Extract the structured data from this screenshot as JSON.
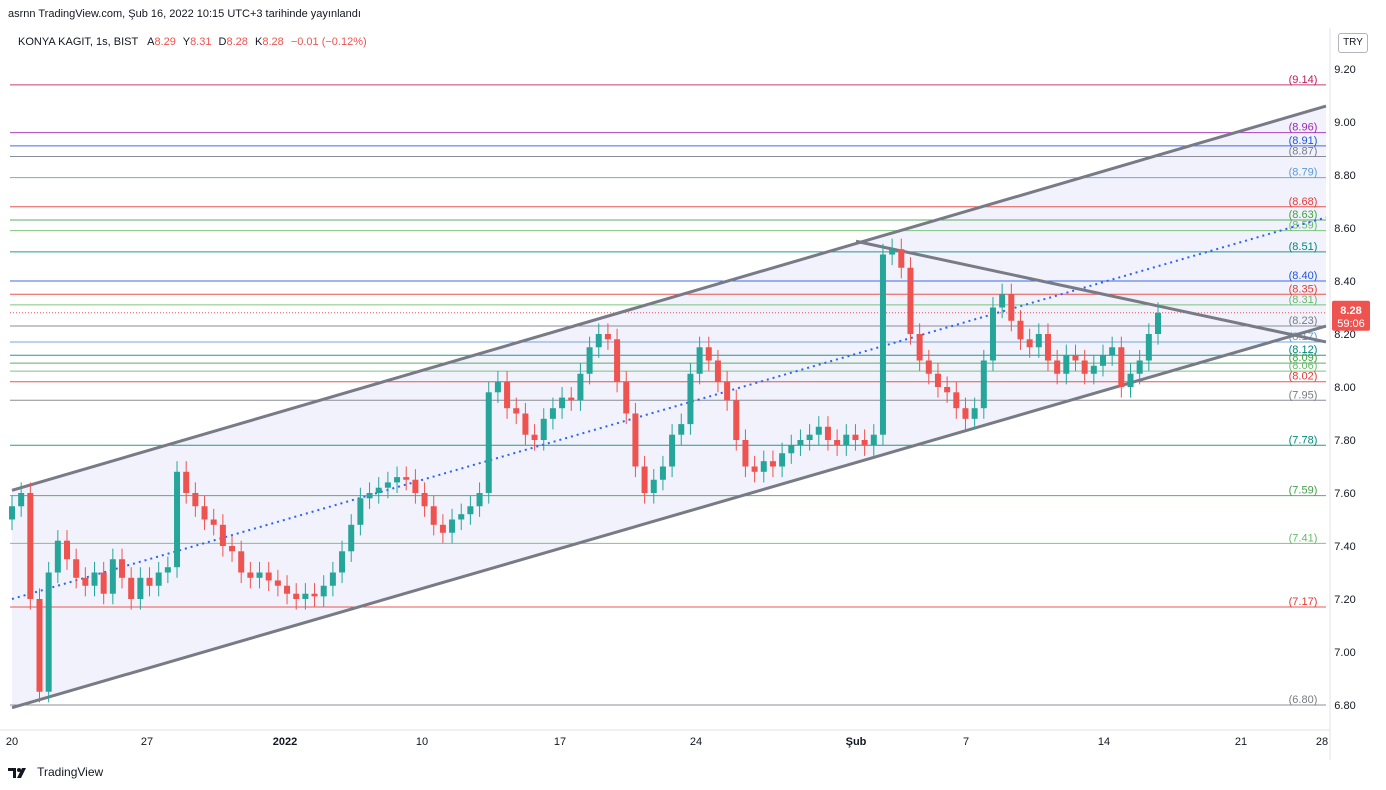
{
  "header": {
    "published": "asrnn TradingView.com, Şub 16, 2022 10:15 UTC+3 tarihinde yayınlandı"
  },
  "legend": {
    "symbol": "KONYA KAGIT, 1s, BIST",
    "open_label": "A",
    "open": "8.29",
    "high_label": "Y",
    "high": "8.31",
    "low_label": "D",
    "low": "8.28",
    "close_label": "K",
    "close": "8.28",
    "change": "−0.01 (−0.12%)"
  },
  "currency_button": "TRY",
  "footer": {
    "brand": "TradingView"
  },
  "price_tag": {
    "price": "8.28",
    "countdown": "59:06"
  },
  "colors": {
    "up": "#26a69a",
    "down": "#ef5350",
    "channel_line": "#787b86",
    "channel_fill": "#e8eaf8",
    "midline": "#2962ff"
  },
  "chart_data": {
    "type": "candlestick",
    "ylim": [
      6.75,
      9.3
    ],
    "y_ticks": [
      "9.20",
      "9.00",
      "8.80",
      "8.60",
      "8.40",
      "8.20",
      "8.00",
      "7.80",
      "7.60",
      "7.40",
      "7.20",
      "7.00",
      "6.80"
    ],
    "x_ticks": [
      "20",
      "27",
      "2022",
      "10",
      "17",
      "24",
      "Şub",
      "7",
      "14",
      "21",
      "28"
    ],
    "levels": [
      {
        "label": "(9.14)",
        "value": 9.14,
        "color": "#c2185b"
      },
      {
        "label": "(8.96)",
        "value": 8.96,
        "color": "#9c27b0"
      },
      {
        "label": "(8.91)",
        "value": 8.91,
        "color": "#1e53e5"
      },
      {
        "label": "(8.87)",
        "value": 8.87,
        "color": "#787b86"
      },
      {
        "label": "(8.79)",
        "value": 8.79,
        "color": "#5b9bd5"
      },
      {
        "label": "(8.68)",
        "value": 8.68,
        "color": "#e53935"
      },
      {
        "label": "(8.63)",
        "value": 8.63,
        "color": "#43a047"
      },
      {
        "label": "(8.59)",
        "value": 8.59,
        "color": "#66bb6a"
      },
      {
        "label": "(8.51)",
        "value": 8.51,
        "color": "#00897b"
      },
      {
        "label": "(8.40)",
        "value": 8.4,
        "color": "#1e53e5"
      },
      {
        "label": "(8.35)",
        "value": 8.35,
        "color": "#e53935"
      },
      {
        "label": "(8.31)",
        "value": 8.31,
        "color": "#66bb6a"
      },
      {
        "label": "(8.23)",
        "value": 8.23,
        "color": "#787b86"
      },
      {
        "label": "(8.17)",
        "value": 8.17,
        "color": "#5b9bd5"
      },
      {
        "label": "(8.12)",
        "value": 8.12,
        "color": "#00897b"
      },
      {
        "label": "(8.09)",
        "value": 8.09,
        "color": "#43a047"
      },
      {
        "label": "(8.06)",
        "value": 8.06,
        "color": "#66bb6a"
      },
      {
        "label": "(8.02)",
        "value": 8.02,
        "color": "#e53935"
      },
      {
        "label": "(7.95)",
        "value": 7.95,
        "color": "#787b86"
      },
      {
        "label": "(7.78)",
        "value": 7.78,
        "color": "#00897b"
      },
      {
        "label": "(7.59)",
        "value": 7.59,
        "color": "#43a047"
      },
      {
        "label": "(7.41)",
        "value": 7.41,
        "color": "#66bb6a"
      },
      {
        "label": "(7.17)",
        "value": 7.17,
        "color": "#e53935"
      },
      {
        "label": "(6.80)",
        "value": 6.8,
        "color": "#787b86"
      }
    ],
    "channel": {
      "upper": [
        [
          "20",
          7.61
        ],
        [
          "end",
          9.06
        ]
      ],
      "lower": [
        [
          "20",
          6.79
        ],
        [
          "end",
          8.23
        ]
      ],
      "mid": [
        [
          "20",
          7.2
        ],
        [
          "end",
          8.64
        ]
      ],
      "resistance": [
        [
          "Şub",
          8.55
        ],
        [
          "end",
          8.17
        ]
      ]
    },
    "close_series": [
      7.55,
      7.6,
      7.2,
      6.85,
      7.3,
      7.42,
      7.35,
      7.28,
      7.25,
      7.3,
      7.22,
      7.35,
      7.28,
      7.2,
      7.28,
      7.25,
      7.3,
      7.32,
      7.68,
      7.6,
      7.55,
      7.5,
      7.48,
      7.4,
      7.38,
      7.3,
      7.28,
      7.3,
      7.27,
      7.25,
      7.22,
      7.2,
      7.22,
      7.21,
      7.25,
      7.3,
      7.38,
      7.48,
      7.58,
      7.6,
      7.62,
      7.64,
      7.66,
      7.65,
      7.6,
      7.55,
      7.48,
      7.45,
      7.5,
      7.52,
      7.55,
      7.6,
      7.98,
      8.02,
      7.92,
      7.9,
      7.82,
      7.8,
      7.88,
      7.92,
      7.96,
      7.95,
      8.05,
      8.15,
      8.2,
      8.18,
      8.02,
      7.9,
      7.7,
      7.6,
      7.65,
      7.7,
      7.82,
      7.86,
      8.05,
      8.15,
      8.1,
      8.02,
      7.95,
      7.8,
      7.7,
      7.68,
      7.72,
      7.7,
      7.75,
      7.78,
      7.8,
      7.82,
      7.85,
      7.8,
      7.78,
      7.82,
      7.8,
      7.78,
      7.82,
      8.5,
      8.52,
      8.45,
      8.2,
      8.1,
      8.05,
      8.0,
      7.98,
      7.92,
      7.88,
      7.92,
      8.1,
      8.3,
      8.35,
      8.25,
      8.18,
      8.15,
      8.2,
      8.1,
      8.05,
      8.12,
      8.1,
      8.05,
      8.08,
      8.12,
      8.15,
      8.0,
      8.05,
      8.1,
      8.2,
      8.28
    ],
    "last_price": 8.28
  }
}
